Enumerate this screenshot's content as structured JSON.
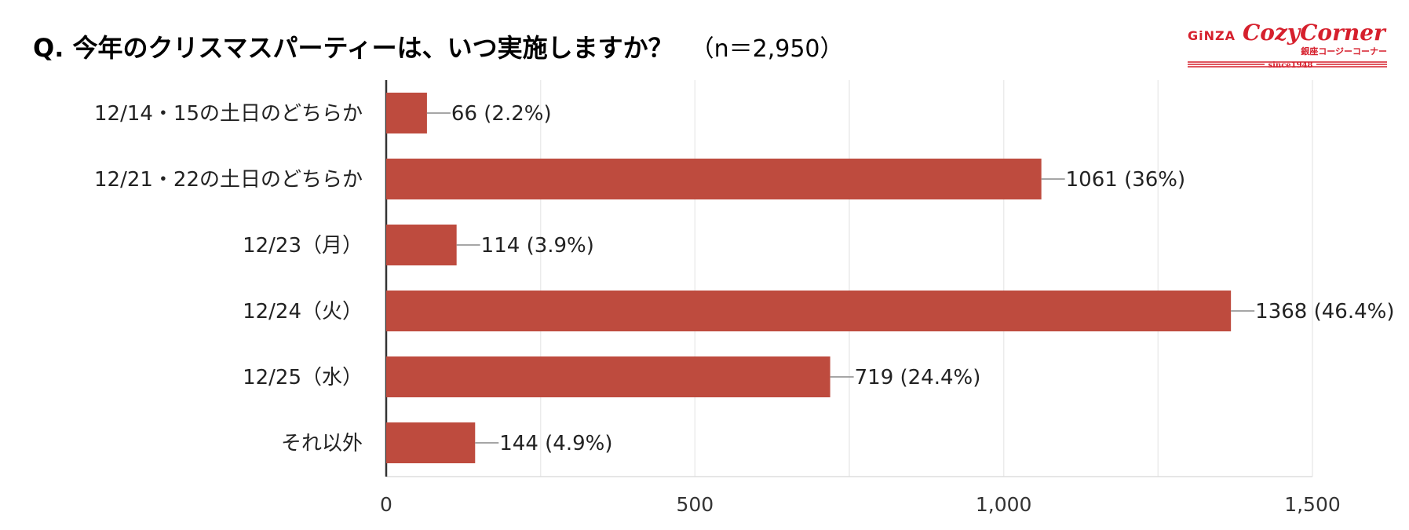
{
  "title": {
    "question": "Q. 今年のクリスマスパーティーは、いつ実施しますか？",
    "sample": "（n＝2,950）"
  },
  "logo": {
    "brand_left": "GiNZA",
    "brand_right": "CozyCorner",
    "sub": "銀座コージーコーナー",
    "since": "since1948",
    "color": "#d6202d"
  },
  "chart_data": {
    "type": "bar",
    "orientation": "horizontal",
    "categories": [
      "12/14・15の土日のどちらか",
      "12/21・22の土日のどちらか",
      "12/23（月）",
      "12/24（火）",
      "12/25（水）",
      "それ以外"
    ],
    "values": [
      66,
      1061,
      114,
      1368,
      719,
      144
    ],
    "data_labels": [
      "66 (2.2%)",
      "1061 (36%)",
      "114 (3.9%)",
      "1368 (46.4%)",
      "719 (24.4%)",
      "144 (4.9%)"
    ],
    "xlim": [
      0,
      1500
    ],
    "xticks": [
      0,
      500,
      1000,
      1500
    ],
    "xtick_labels": [
      "0",
      "500",
      "1,000",
      "1,500"
    ],
    "grid": true,
    "bar_color": "#be4b3e"
  }
}
